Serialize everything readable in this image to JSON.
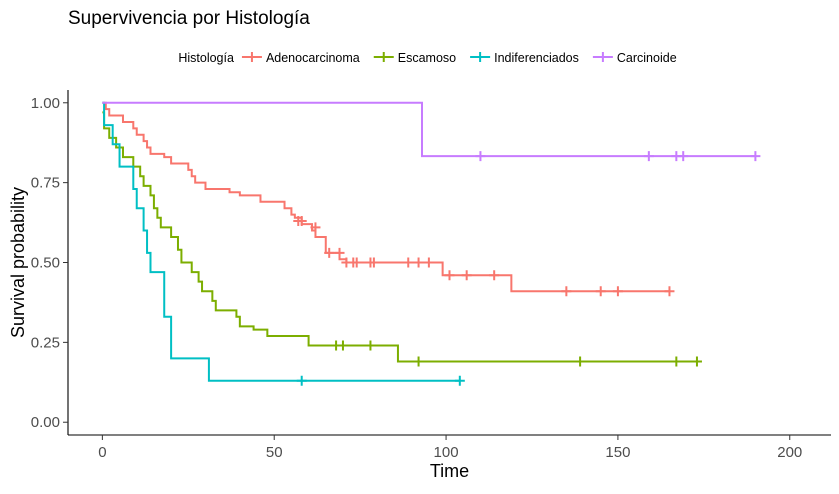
{
  "chart_data": {
    "type": "line",
    "title": "Supervivencia por Histología",
    "xlabel": "Time",
    "ylabel": "Survival probability",
    "xlim": [
      -10,
      212
    ],
    "ylim": [
      -0.04,
      1.04
    ],
    "xticks": [
      0,
      50,
      100,
      150,
      200
    ],
    "yticks": [
      0.0,
      0.25,
      0.5,
      0.75,
      1.0
    ],
    "xtick_labels": [
      "0",
      "50",
      "100",
      "150",
      "200"
    ],
    "ytick_labels": [
      "0.00",
      "0.25",
      "0.50",
      "0.75",
      "1.00"
    ],
    "grid": false,
    "legend": {
      "position": "top",
      "title": "Histología",
      "entries": [
        "Adenocarcinoma",
        "Escamoso",
        "Indiferenciados",
        "Carcinoide"
      ]
    },
    "series": [
      {
        "name": "Adenocarcinoma",
        "color": "#F8766D",
        "steps": [
          [
            0,
            1.0
          ],
          [
            1,
            0.98
          ],
          [
            2,
            0.96
          ],
          [
            6,
            0.94
          ],
          [
            9,
            0.92
          ],
          [
            10,
            0.9
          ],
          [
            12,
            0.88
          ],
          [
            13,
            0.86
          ],
          [
            14,
            0.84
          ],
          [
            18,
            0.83
          ],
          [
            20,
            0.81
          ],
          [
            25,
            0.79
          ],
          [
            26,
            0.77
          ],
          [
            27,
            0.75
          ],
          [
            30,
            0.73
          ],
          [
            37,
            0.72
          ],
          [
            40,
            0.71
          ],
          [
            46,
            0.69
          ],
          [
            53,
            0.67
          ],
          [
            55,
            0.65
          ],
          [
            56,
            0.64
          ],
          [
            58,
            0.62
          ],
          [
            61,
            0.6
          ],
          [
            62,
            0.58
          ],
          [
            65,
            0.53
          ],
          [
            69,
            0.51
          ],
          [
            71,
            0.5
          ],
          [
            78,
            0.5
          ],
          [
            87,
            0.5
          ],
          [
            99,
            0.46
          ],
          [
            119,
            0.41
          ],
          [
            165,
            0.41
          ]
        ],
        "censored": [
          [
            57,
            0.63
          ],
          [
            58,
            0.63
          ],
          [
            62,
            0.61
          ],
          [
            66,
            0.53
          ],
          [
            69,
            0.53
          ],
          [
            71,
            0.5
          ],
          [
            73,
            0.5
          ],
          [
            74,
            0.5
          ],
          [
            78,
            0.5
          ],
          [
            79,
            0.5
          ],
          [
            89,
            0.5
          ],
          [
            92,
            0.5
          ],
          [
            95,
            0.5
          ],
          [
            101,
            0.46
          ],
          [
            106,
            0.46
          ],
          [
            114,
            0.46
          ],
          [
            135,
            0.41
          ],
          [
            145,
            0.41
          ],
          [
            150,
            0.41
          ],
          [
            165,
            0.41
          ]
        ]
      },
      {
        "name": "Escamoso",
        "color": "#7CAE00",
        "steps": [
          [
            0,
            0.97
          ],
          [
            0.5,
            0.92
          ],
          [
            2,
            0.89
          ],
          [
            4,
            0.86
          ],
          [
            6,
            0.83
          ],
          [
            9,
            0.8
          ],
          [
            11,
            0.77
          ],
          [
            12,
            0.74
          ],
          [
            14,
            0.71
          ],
          [
            15,
            0.67
          ],
          [
            16,
            0.64
          ],
          [
            17,
            0.61
          ],
          [
            20,
            0.58
          ],
          [
            22,
            0.54
          ],
          [
            23,
            0.5
          ],
          [
            26,
            0.47
          ],
          [
            28,
            0.44
          ],
          [
            29,
            0.41
          ],
          [
            32,
            0.38
          ],
          [
            33,
            0.35
          ],
          [
            39,
            0.33
          ],
          [
            40,
            0.3
          ],
          [
            44,
            0.29
          ],
          [
            48,
            0.27
          ],
          [
            60,
            0.24
          ],
          [
            86,
            0.19
          ],
          [
            173,
            0.19
          ]
        ],
        "censored": [
          [
            68,
            0.24
          ],
          [
            70,
            0.24
          ],
          [
            78,
            0.24
          ],
          [
            92,
            0.19
          ],
          [
            139,
            0.19
          ],
          [
            167,
            0.19
          ],
          [
            173,
            0.19
          ]
        ]
      },
      {
        "name": "Indiferenciados",
        "color": "#00BFC4",
        "steps": [
          [
            0,
            1.0
          ],
          [
            0.5,
            0.93
          ],
          [
            3,
            0.87
          ],
          [
            5,
            0.8
          ],
          [
            9,
            0.73
          ],
          [
            10,
            0.67
          ],
          [
            12,
            0.6
          ],
          [
            13,
            0.53
          ],
          [
            14,
            0.47
          ],
          [
            18,
            0.33
          ],
          [
            20,
            0.2
          ],
          [
            31,
            0.13
          ],
          [
            104,
            0.13
          ]
        ],
        "censored": [
          [
            58,
            0.13
          ],
          [
            104,
            0.13
          ]
        ]
      },
      {
        "name": "Carcinoide",
        "color": "#C77CFF",
        "steps": [
          [
            0,
            1.0
          ],
          [
            93,
            0.833
          ],
          [
            190,
            0.833
          ]
        ],
        "censored": [
          [
            110,
            0.833
          ],
          [
            159,
            0.833
          ],
          [
            167,
            0.833
          ],
          [
            169,
            0.833
          ],
          [
            190,
            0.833
          ]
        ]
      }
    ]
  }
}
